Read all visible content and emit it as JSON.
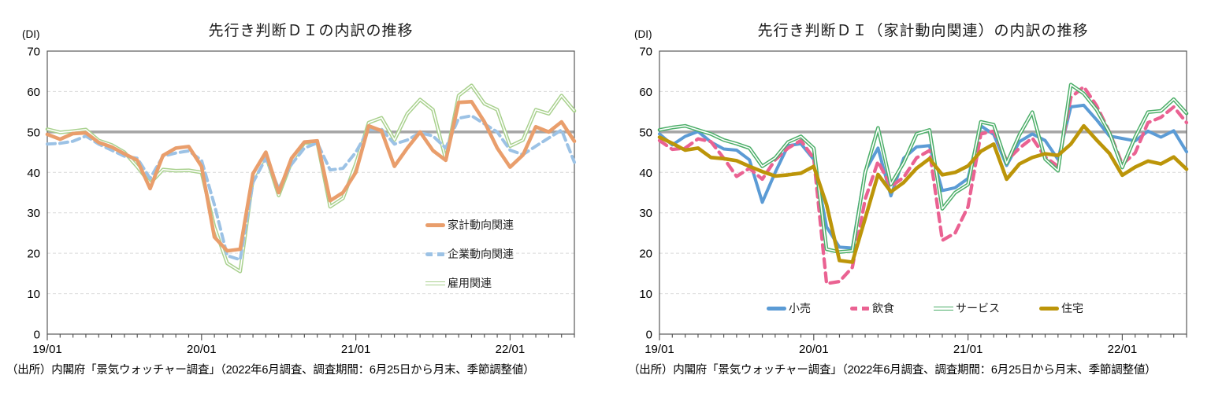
{
  "style": {
    "background": "#FFFFFF",
    "grid_color": "#D9D9D9",
    "fifty_line_color": "#A6A6A6",
    "border_color": "#595959",
    "text_color": "#000000"
  },
  "charts": [
    {
      "title": "先行き判断ＤＩの内訳の推移",
      "axis_unit_label": "(DI)",
      "source_note": "（出所）内閣府「景気ウォッチャー調査」（2022年6月調査、調査期間：6月25日から月末、季節調整値）",
      "legend_position": "inside-right-vertical",
      "chart_data": {
        "type": "line",
        "ylim": [
          0,
          70
        ],
        "y_ticks": [
          0,
          10,
          20,
          30,
          40,
          50,
          60,
          70
        ],
        "base_line": 50,
        "grid": "dashed-horizontal",
        "x_tick_labels": [
          "19/01",
          "20/01",
          "21/01",
          "22/01"
        ],
        "x_major_indexes": [
          0,
          12,
          24,
          36
        ],
        "x": [
          "19/01",
          "19/02",
          "19/03",
          "19/04",
          "19/05",
          "19/06",
          "19/07",
          "19/08",
          "19/09",
          "19/10",
          "19/11",
          "19/12",
          "20/01",
          "20/02",
          "20/03",
          "20/04",
          "20/05",
          "20/06",
          "20/07",
          "20/08",
          "20/09",
          "20/10",
          "20/11",
          "20/12",
          "21/01",
          "21/02",
          "21/03",
          "21/04",
          "21/05",
          "21/06",
          "21/07",
          "21/08",
          "21/09",
          "21/10",
          "21/11",
          "21/12",
          "22/01",
          "22/02",
          "22/03",
          "22/04",
          "22/05",
          "22/06"
        ],
        "series": [
          {
            "key": "employment",
            "name": "雇用関連",
            "color": "#A9D18E",
            "style": "double",
            "width": 4.6,
            "values": [
              50.7,
              49.9,
              50.2,
              50.6,
              47.9,
              46.8,
              45.0,
              41.4,
              37.3,
              40.7,
              40.4,
              40.5,
              40.0,
              26.5,
              17.5,
              15.5,
              38.5,
              44.2,
              34.3,
              42.6,
              47.3,
              47.4,
              31.5,
              33.6,
              42.1,
              52.3,
              53.5,
              48.0,
              54.5,
              58.0,
              55.5,
              43.2,
              59.0,
              61.5,
              57.0,
              55.5,
              46.5,
              48.0,
              55.5,
              54.5,
              59.0,
              55.2
            ]
          },
          {
            "key": "corporate",
            "name": "企業動向関連",
            "color": "#9CC2E5",
            "style": "dashed",
            "dash": "10 6",
            "width": 4,
            "values": [
              47.0,
              47.2,
              47.7,
              49.0,
              47.0,
              45.5,
              44.0,
              43.5,
              38.5,
              44.0,
              44.8,
              45.3,
              43.0,
              32.0,
              19.4,
              18.4,
              37.5,
              43.5,
              36.0,
              42.0,
              46.0,
              47.3,
              40.6,
              41.0,
              45.0,
              50.6,
              50.7,
              47.0,
              48.0,
              49.8,
              49.0,
              46.0,
              53.4,
              54.0,
              52.0,
              50.0,
              45.5,
              44.4,
              46.5,
              48.5,
              50.5,
              42.5
            ]
          },
          {
            "key": "household",
            "name": "家計動向関連",
            "color": "#E99E6C",
            "style": "solid",
            "width": 4.6,
            "values": [
              49.4,
              48.2,
              49.6,
              49.8,
              47.4,
              46.3,
              44.6,
              43.0,
              36.0,
              44.2,
              46.0,
              46.4,
              41.5,
              24.0,
              20.6,
              21.0,
              39.7,
              45.0,
              35.0,
              43.5,
              47.5,
              47.8,
              33.0,
              35.0,
              40.0,
              51.5,
              50.3,
              41.5,
              46.0,
              50.0,
              45.4,
              43.0,
              57.3,
              57.5,
              52.5,
              46.0,
              41.3,
              44.3,
              51.3,
              50.0,
              52.5,
              47.7
            ]
          }
        ],
        "legend_order": [
          "household",
          "corporate",
          "employment"
        ]
      }
    },
    {
      "title": "先行き判断ＤＩ（家計動向関連）の内訳の推移",
      "axis_unit_label": "(DI)",
      "source_note": "（出所）内閣府「景気ウォッチャー調査」（2022年6月調査、調査期間：6月25日から月末、季節調整値）",
      "legend_position": "inside-bottom-horizontal",
      "chart_data": {
        "type": "line",
        "ylim": [
          0,
          70
        ],
        "y_ticks": [
          0,
          10,
          20,
          30,
          40,
          50,
          60,
          70
        ],
        "base_line": 50,
        "grid": "dashed-horizontal",
        "x_tick_labels": [
          "19/01",
          "20/01",
          "21/01",
          "22/01"
        ],
        "x_major_indexes": [
          0,
          12,
          24,
          36
        ],
        "x": [
          "19/01",
          "19/02",
          "19/03",
          "19/04",
          "19/05",
          "19/06",
          "19/07",
          "19/08",
          "19/09",
          "19/10",
          "19/11",
          "19/12",
          "20/01",
          "20/02",
          "20/03",
          "20/04",
          "20/05",
          "20/06",
          "20/07",
          "20/08",
          "20/09",
          "20/10",
          "20/11",
          "20/12",
          "21/01",
          "21/02",
          "21/03",
          "21/04",
          "21/05",
          "21/06",
          "21/07",
          "21/08",
          "21/09",
          "21/10",
          "21/11",
          "21/12",
          "22/01",
          "22/02",
          "22/03",
          "22/04",
          "22/05",
          "22/06"
        ],
        "series": [
          {
            "key": "retail",
            "name": "小売",
            "color": "#5B9BD5",
            "style": "solid",
            "width": 4,
            "values": [
              49.5,
              46.8,
              48.9,
              50.1,
              47.5,
              45.8,
              45.5,
              43.1,
              32.6,
              40.0,
              46.6,
              47.1,
              43.2,
              26.5,
              21.5,
              21.3,
              40.3,
              46.0,
              34.2,
              43.5,
              46.3,
              46.6,
              35.5,
              36.2,
              38.5,
              51.5,
              49.4,
              41.7,
              47.6,
              49.5,
              47.9,
              43.2,
              56.2,
              56.6,
              53.0,
              49.0,
              48.4,
              47.8,
              50.2,
              48.7,
              50.3,
              45.1
            ]
          },
          {
            "key": "food",
            "name": "飲食",
            "color": "#EA6292",
            "style": "dashed",
            "dash": "11 7",
            "width": 4.3,
            "values": [
              47.9,
              45.7,
              46.0,
              48.3,
              47.6,
              43.5,
              39.0,
              41.0,
              38.3,
              43.1,
              46.0,
              47.9,
              43.5,
              12.5,
              13.0,
              16.5,
              33.4,
              42.7,
              36.5,
              38.8,
              43.6,
              45.4,
              23.2,
              25.0,
              31.5,
              49.5,
              50.2,
              42.9,
              46.0,
              48.5,
              43.8,
              41.5,
              58.5,
              61.2,
              56.5,
              50.0,
              42.0,
              44.8,
              52.3,
              53.6,
              56.2,
              52.3
            ]
          },
          {
            "key": "services",
            "name": "サービス",
            "color": "#4BAE68",
            "style": "double",
            "width": 4.6,
            "values": [
              50.5,
              51.1,
              51.5,
              50.5,
              49.5,
              48.0,
              47.1,
              46.0,
              41.5,
              43.6,
              47.5,
              48.9,
              46.0,
              21.0,
              20.3,
              20.6,
              40.0,
              51.0,
              37.0,
              42.4,
              49.5,
              50.5,
              31.0,
              35.0,
              37.0,
              52.5,
              51.8,
              42.2,
              49.3,
              54.9,
              43.3,
              40.4,
              61.7,
              59.5,
              55.5,
              49.8,
              41.2,
              48.7,
              54.9,
              55.2,
              58.1,
              54.6
            ]
          },
          {
            "key": "housing",
            "name": "住宅",
            "color": "#BC9509",
            "style": "solid",
            "width": 4.6,
            "values": [
              48.7,
              47.2,
              45.5,
              46.0,
              43.7,
              43.4,
              42.9,
              41.5,
              40.2,
              39.1,
              39.4,
              39.8,
              41.5,
              32.0,
              18.2,
              17.8,
              28.6,
              39.5,
              35.2,
              37.5,
              41.0,
              43.4,
              39.4,
              40.0,
              41.6,
              45.2,
              47.0,
              38.3,
              42.1,
              43.7,
              44.6,
              44.2,
              47.0,
              51.5,
              48.0,
              44.7,
              39.3,
              41.3,
              42.8,
              42.1,
              43.8,
              40.8
            ]
          }
        ],
        "legend_order": [
          "retail",
          "food",
          "services",
          "housing"
        ]
      }
    }
  ]
}
